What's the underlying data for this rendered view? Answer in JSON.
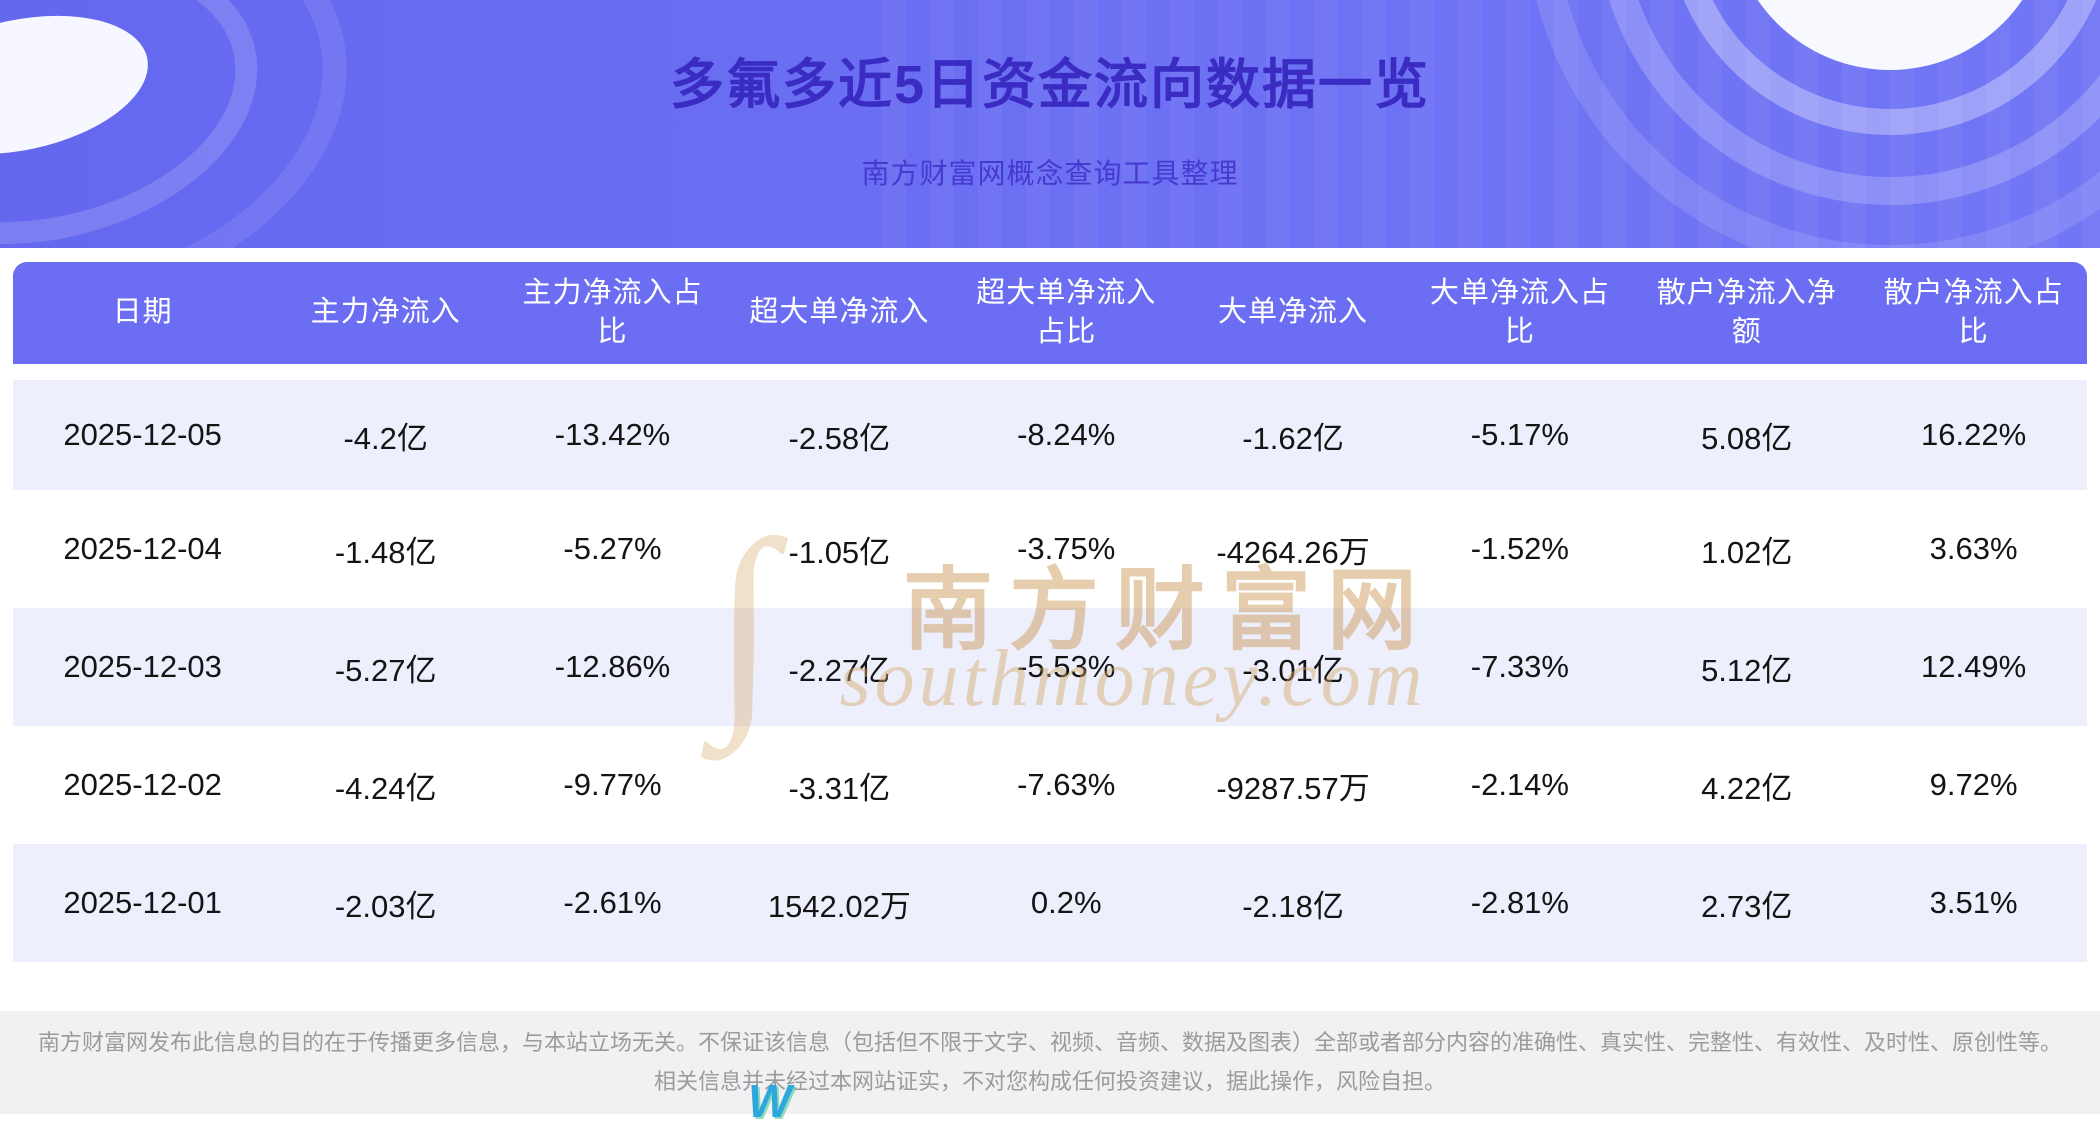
{
  "colors": {
    "banner_bg": "#6468ef",
    "title_color": "#3a2cc3",
    "subtitle_color": "#4639cf",
    "table_header_bg": "#6b6ef2",
    "row_alt_bg": "#edeffc",
    "footer_text": "#9b9b9b",
    "watermark_color": "#d2a467"
  },
  "header": {
    "title": "多氟多近5日资金流向数据一览",
    "subtitle": "南方财富网概念查询工具整理"
  },
  "chart_data": {
    "type": "table",
    "title": "多氟多近5日资金流向数据一览",
    "columns": [
      "日期",
      "主力净流入",
      "主力净流入占比",
      "超大单净流入",
      "超大单净流入占比",
      "大单净流入",
      "大单净流入占比",
      "散户净流入净额",
      "散户净流入占比"
    ],
    "rows": [
      [
        "2025-12-05",
        "-4.2亿",
        "-13.42%",
        "-2.58亿",
        "-8.24%",
        "-1.62亿",
        "-5.17%",
        "5.08亿",
        "16.22%"
      ],
      [
        "2025-12-04",
        "-1.48亿",
        "-5.27%",
        "-1.05亿",
        "-3.75%",
        "-4264.26万",
        "-1.52%",
        "1.02亿",
        "3.63%"
      ],
      [
        "2025-12-03",
        "-5.27亿",
        "-12.86%",
        "-2.27亿",
        "-5.53%",
        "-3.01亿",
        "-7.33%",
        "5.12亿",
        "12.49%"
      ],
      [
        "2025-12-02",
        "-4.24亿",
        "-9.77%",
        "-3.31亿",
        "-7.63%",
        "-9287.57万",
        "-2.14%",
        "4.22亿",
        "9.72%"
      ],
      [
        "2025-12-01",
        "-2.03亿",
        "-2.61%",
        "1542.02万",
        "0.2%",
        "-2.18亿",
        "-2.81%",
        "2.73亿",
        "3.51%"
      ]
    ]
  },
  "watermark": {
    "script_glyph": "∫",
    "cjk": "南方财富网",
    "en": "southmoney.com"
  },
  "footer": {
    "disclaimer": "南方财富网发布此信息的目的在于传播更多信息，与本站立场无关。不保证该信息（包括但不限于文字、视频、音频、数据及图表）全部或者部分内容的准确性、真实性、完整性、有效性、及时性、原创性等。相关信息并未经过本网站证实，不对您构成任何投资建议，据此操作，风险自担。",
    "logo": "W"
  }
}
